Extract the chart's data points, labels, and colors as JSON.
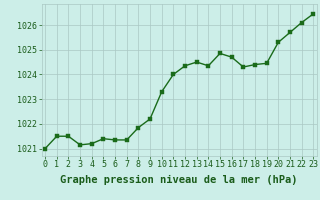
{
  "x": [
    0,
    1,
    2,
    3,
    4,
    5,
    6,
    7,
    8,
    9,
    10,
    11,
    12,
    13,
    14,
    15,
    16,
    17,
    18,
    19,
    20,
    21,
    22,
    23
  ],
  "y": [
    1021.0,
    1021.5,
    1021.5,
    1021.15,
    1021.2,
    1021.4,
    1021.35,
    1021.35,
    1021.85,
    1022.2,
    1023.3,
    1024.0,
    1024.35,
    1024.5,
    1024.35,
    1024.85,
    1024.7,
    1024.3,
    1024.4,
    1024.45,
    1025.3,
    1025.7,
    1026.1,
    1026.45
  ],
  "line_color": "#1a6b1a",
  "marker_color": "#1a6b1a",
  "bg_color": "#cceee8",
  "grid_color": "#aac8c4",
  "xlabel": "Graphe pression niveau de la mer (hPa)",
  "xlabel_color": "#1a5c1a",
  "tick_color": "#1a5c1a",
  "ylim": [
    1020.7,
    1026.85
  ],
  "yticks": [
    1021,
    1022,
    1023,
    1024,
    1025,
    1026
  ],
  "xticks": [
    0,
    1,
    2,
    3,
    4,
    5,
    6,
    7,
    8,
    9,
    10,
    11,
    12,
    13,
    14,
    15,
    16,
    17,
    18,
    19,
    20,
    21,
    22,
    23
  ],
  "xlim": [
    -0.3,
    23.3
  ],
  "marker_size": 2.5,
  "line_width": 1.0,
  "xlabel_fontsize": 7.5,
  "tick_fontsize": 6.0
}
